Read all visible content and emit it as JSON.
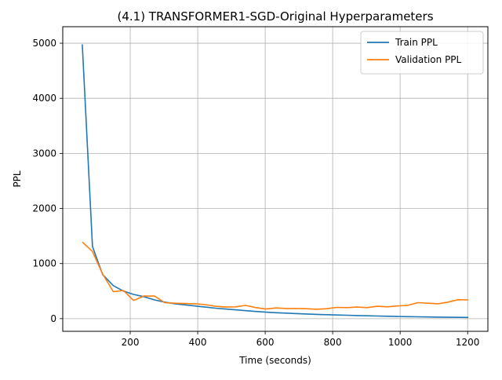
{
  "chart_data": {
    "type": "line",
    "title": "(4.1) TRANSFORMER1-SGD-Original Hyperparameters",
    "xlabel": "Time (seconds)",
    "ylabel": "PPL",
    "xlim": [
      0,
      1260
    ],
    "ylim": [
      -230,
      5300
    ],
    "xticks": [
      200,
      400,
      600,
      800,
      1000,
      1200
    ],
    "yticks": [
      0,
      1000,
      2000,
      3000,
      4000,
      5000
    ],
    "grid": true,
    "legend_position": "top-right",
    "series": [
      {
        "name": "Train PPL",
        "color": "#1f77b4",
        "x": [
          58,
          88,
          118,
          150,
          180,
          210,
          240,
          272,
          302,
          332,
          362,
          392,
          422,
          452,
          482,
          512,
          542,
          572,
          602,
          632,
          662,
          692,
          722,
          752,
          782,
          812,
          842,
          872,
          902,
          932,
          962,
          992,
          1022,
          1052,
          1082,
          1112,
          1142,
          1172,
          1202
        ],
        "values": [
          4980,
          1310,
          800,
          600,
          500,
          440,
          400,
          340,
          300,
          270,
          250,
          230,
          210,
          190,
          175,
          160,
          145,
          130,
          118,
          108,
          100,
          92,
          85,
          78,
          72,
          67,
          62,
          57,
          52,
          48,
          44,
          40,
          37,
          34,
          31,
          28,
          25,
          23,
          22
        ]
      },
      {
        "name": "Validation PPL",
        "color": "#ff7f0e",
        "x": [
          58,
          88,
          118,
          150,
          180,
          210,
          240,
          272,
          302,
          332,
          362,
          392,
          422,
          452,
          482,
          512,
          542,
          572,
          602,
          632,
          662,
          692,
          722,
          752,
          782,
          812,
          842,
          872,
          902,
          932,
          962,
          992,
          1022,
          1052,
          1082,
          1112,
          1142,
          1172,
          1202
        ],
        "values": [
          1390,
          1220,
          810,
          490,
          510,
          330,
          410,
          410,
          290,
          280,
          275,
          270,
          255,
          225,
          210,
          215,
          240,
          200,
          175,
          195,
          185,
          185,
          180,
          170,
          180,
          205,
          200,
          210,
          200,
          225,
          215,
          230,
          240,
          290,
          280,
          270,
          300,
          345,
          340
        ]
      }
    ]
  }
}
